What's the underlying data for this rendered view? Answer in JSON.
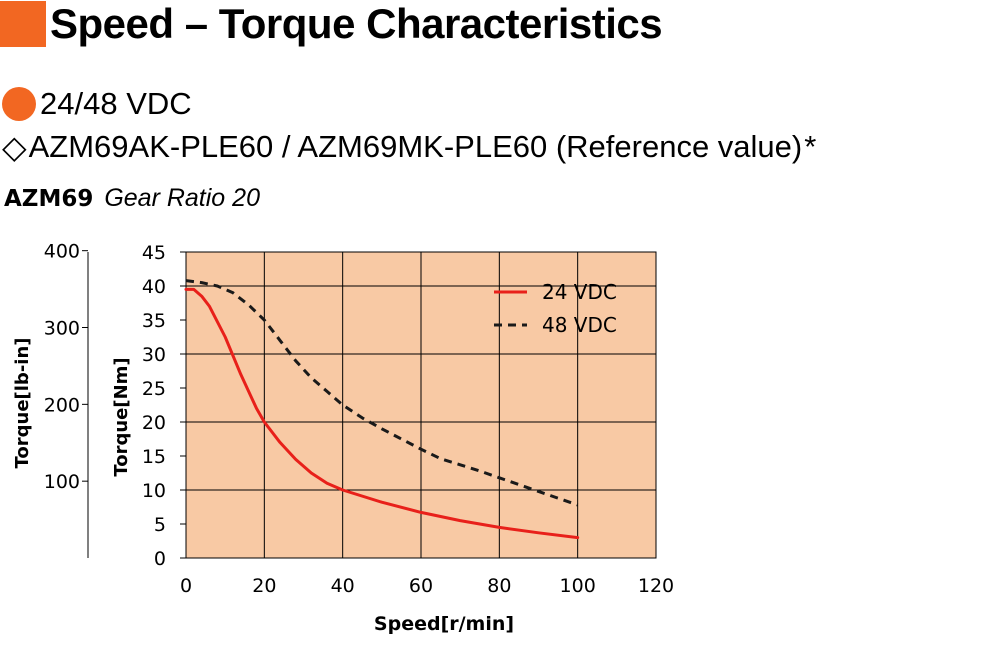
{
  "header": {
    "title": "Speed – Torque Characteristics",
    "accent_color": "#f26722"
  },
  "voltage": {
    "label": "24/48 VDC",
    "bullet_color": "#f26722"
  },
  "model": {
    "icon": "diamond-outline-icon",
    "symbol": "◇",
    "text": "AZM69AK-PLE60 / AZM69MK-PLE60 (Reference value)",
    "note_mark": "*"
  },
  "gear": {
    "model": "AZM69",
    "ratio_text": "Gear Ratio 20"
  },
  "chart_data": {
    "type": "line",
    "xlabel": "Speed[r/min]",
    "ylabel": "Torque[Nm]",
    "ylabel_secondary": "Torque[lb-in]",
    "xlim": [
      0,
      120
    ],
    "ylim": [
      0,
      45
    ],
    "x_ticks": [
      0,
      20,
      40,
      60,
      80,
      100,
      120
    ],
    "y_ticks": [
      0,
      5,
      10,
      15,
      20,
      25,
      30,
      35,
      40,
      45
    ],
    "y2_ticks": [
      100,
      200,
      300,
      400
    ],
    "grid": true,
    "plot_background": "#f8c9a4",
    "legend_position": "top-right",
    "series": [
      {
        "name": "24 VDC",
        "color": "#e8201a",
        "dash": "solid",
        "points": [
          [
            0,
            39.5
          ],
          [
            2,
            39.5
          ],
          [
            4,
            38.5
          ],
          [
            6,
            37
          ],
          [
            10,
            32.5
          ],
          [
            14,
            27
          ],
          [
            18,
            22
          ],
          [
            20,
            20
          ],
          [
            24,
            17
          ],
          [
            28,
            14.5
          ],
          [
            32,
            12.5
          ],
          [
            36,
            11
          ],
          [
            40,
            10
          ],
          [
            50,
            8.2
          ],
          [
            60,
            6.7
          ],
          [
            70,
            5.5
          ],
          [
            80,
            4.5
          ],
          [
            90,
            3.7
          ],
          [
            100,
            3
          ]
        ]
      },
      {
        "name": "48 VDC",
        "color": "#1a1a1a",
        "dash": "dashed",
        "points": [
          [
            0,
            40.8
          ],
          [
            4,
            40.5
          ],
          [
            8,
            40
          ],
          [
            12,
            39
          ],
          [
            16,
            37.2
          ],
          [
            20,
            35
          ],
          [
            24,
            32
          ],
          [
            28,
            29
          ],
          [
            32,
            26.5
          ],
          [
            36,
            24.5
          ],
          [
            40,
            22.5
          ],
          [
            45,
            20.6
          ],
          [
            50,
            19
          ],
          [
            55,
            17.5
          ],
          [
            60,
            16
          ],
          [
            65,
            14.6
          ],
          [
            70,
            13.7
          ],
          [
            75,
            12.8
          ],
          [
            80,
            11.8
          ],
          [
            85,
            10.8
          ],
          [
            90,
            9.8
          ],
          [
            95,
            8.8
          ],
          [
            100,
            7.8
          ]
        ]
      }
    ]
  }
}
